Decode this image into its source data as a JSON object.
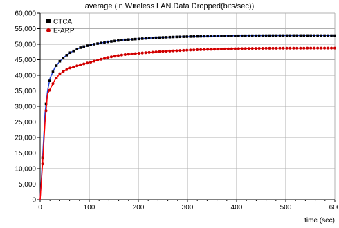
{
  "chart_data": {
    "type": "line",
    "title": "average (in Wireless LAN.Data Dropped(bits/sec))",
    "xlabel": "time (sec)",
    "ylabel": "",
    "xlim": [
      0,
      600
    ],
    "ylim": [
      0,
      60000
    ],
    "x_ticks": [
      0,
      100,
      200,
      300,
      400,
      500,
      600
    ],
    "x_tick_labels": [
      "0",
      "100",
      "200",
      "300",
      "400",
      "500",
      "600"
    ],
    "y_ticks": [
      0,
      5000,
      10000,
      15000,
      20000,
      25000,
      30000,
      35000,
      40000,
      45000,
      50000,
      55000,
      60000
    ],
    "y_tick_labels": [
      "0",
      "5,000",
      "10,000",
      "15,000",
      "20,000",
      "25,000",
      "30,000",
      "35,000",
      "40,000",
      "45,000",
      "50,000",
      "55,000",
      "60,000"
    ],
    "grid": true,
    "legend_position": "top-left",
    "series": [
      {
        "name": "CTCA",
        "color": "#1f3fd6",
        "marker_color": "#000000",
        "marker": "square",
        "x": [
          0,
          5,
          10,
          15,
          20,
          30,
          40,
          50,
          60,
          70,
          80,
          90,
          100,
          120,
          140,
          160,
          180,
          200,
          225,
          250,
          275,
          300,
          325,
          350,
          375,
          400,
          425,
          450,
          475,
          500,
          525,
          550,
          575,
          600
        ],
        "y": [
          0,
          13500,
          28000,
          35000,
          39000,
          42500,
          44500,
          46000,
          47200,
          48000,
          48800,
          49300,
          49700,
          50300,
          50800,
          51200,
          51500,
          51700,
          52000,
          52200,
          52350,
          52450,
          52550,
          52620,
          52680,
          52720,
          52750,
          52770,
          52790,
          52800,
          52810,
          52800,
          52790,
          52780
        ]
      },
      {
        "name": "E-ARP",
        "color": "#ff0000",
        "marker_color": "#cc0000",
        "marker": "circle",
        "x": [
          0,
          5,
          10,
          15,
          20,
          30,
          40,
          50,
          60,
          70,
          80,
          90,
          100,
          120,
          140,
          160,
          180,
          200,
          225,
          250,
          275,
          300,
          325,
          350,
          375,
          400,
          425,
          450,
          475,
          500,
          525,
          550,
          575,
          600
        ],
        "y": [
          0,
          11500,
          25000,
          34000,
          35500,
          38500,
          40500,
          41500,
          42300,
          42800,
          43300,
          43700,
          44100,
          45000,
          45800,
          46400,
          46800,
          47100,
          47400,
          47700,
          47900,
          48100,
          48250,
          48380,
          48480,
          48560,
          48620,
          48670,
          48700,
          48720,
          48730,
          48740,
          48750,
          48760
        ]
      }
    ]
  }
}
